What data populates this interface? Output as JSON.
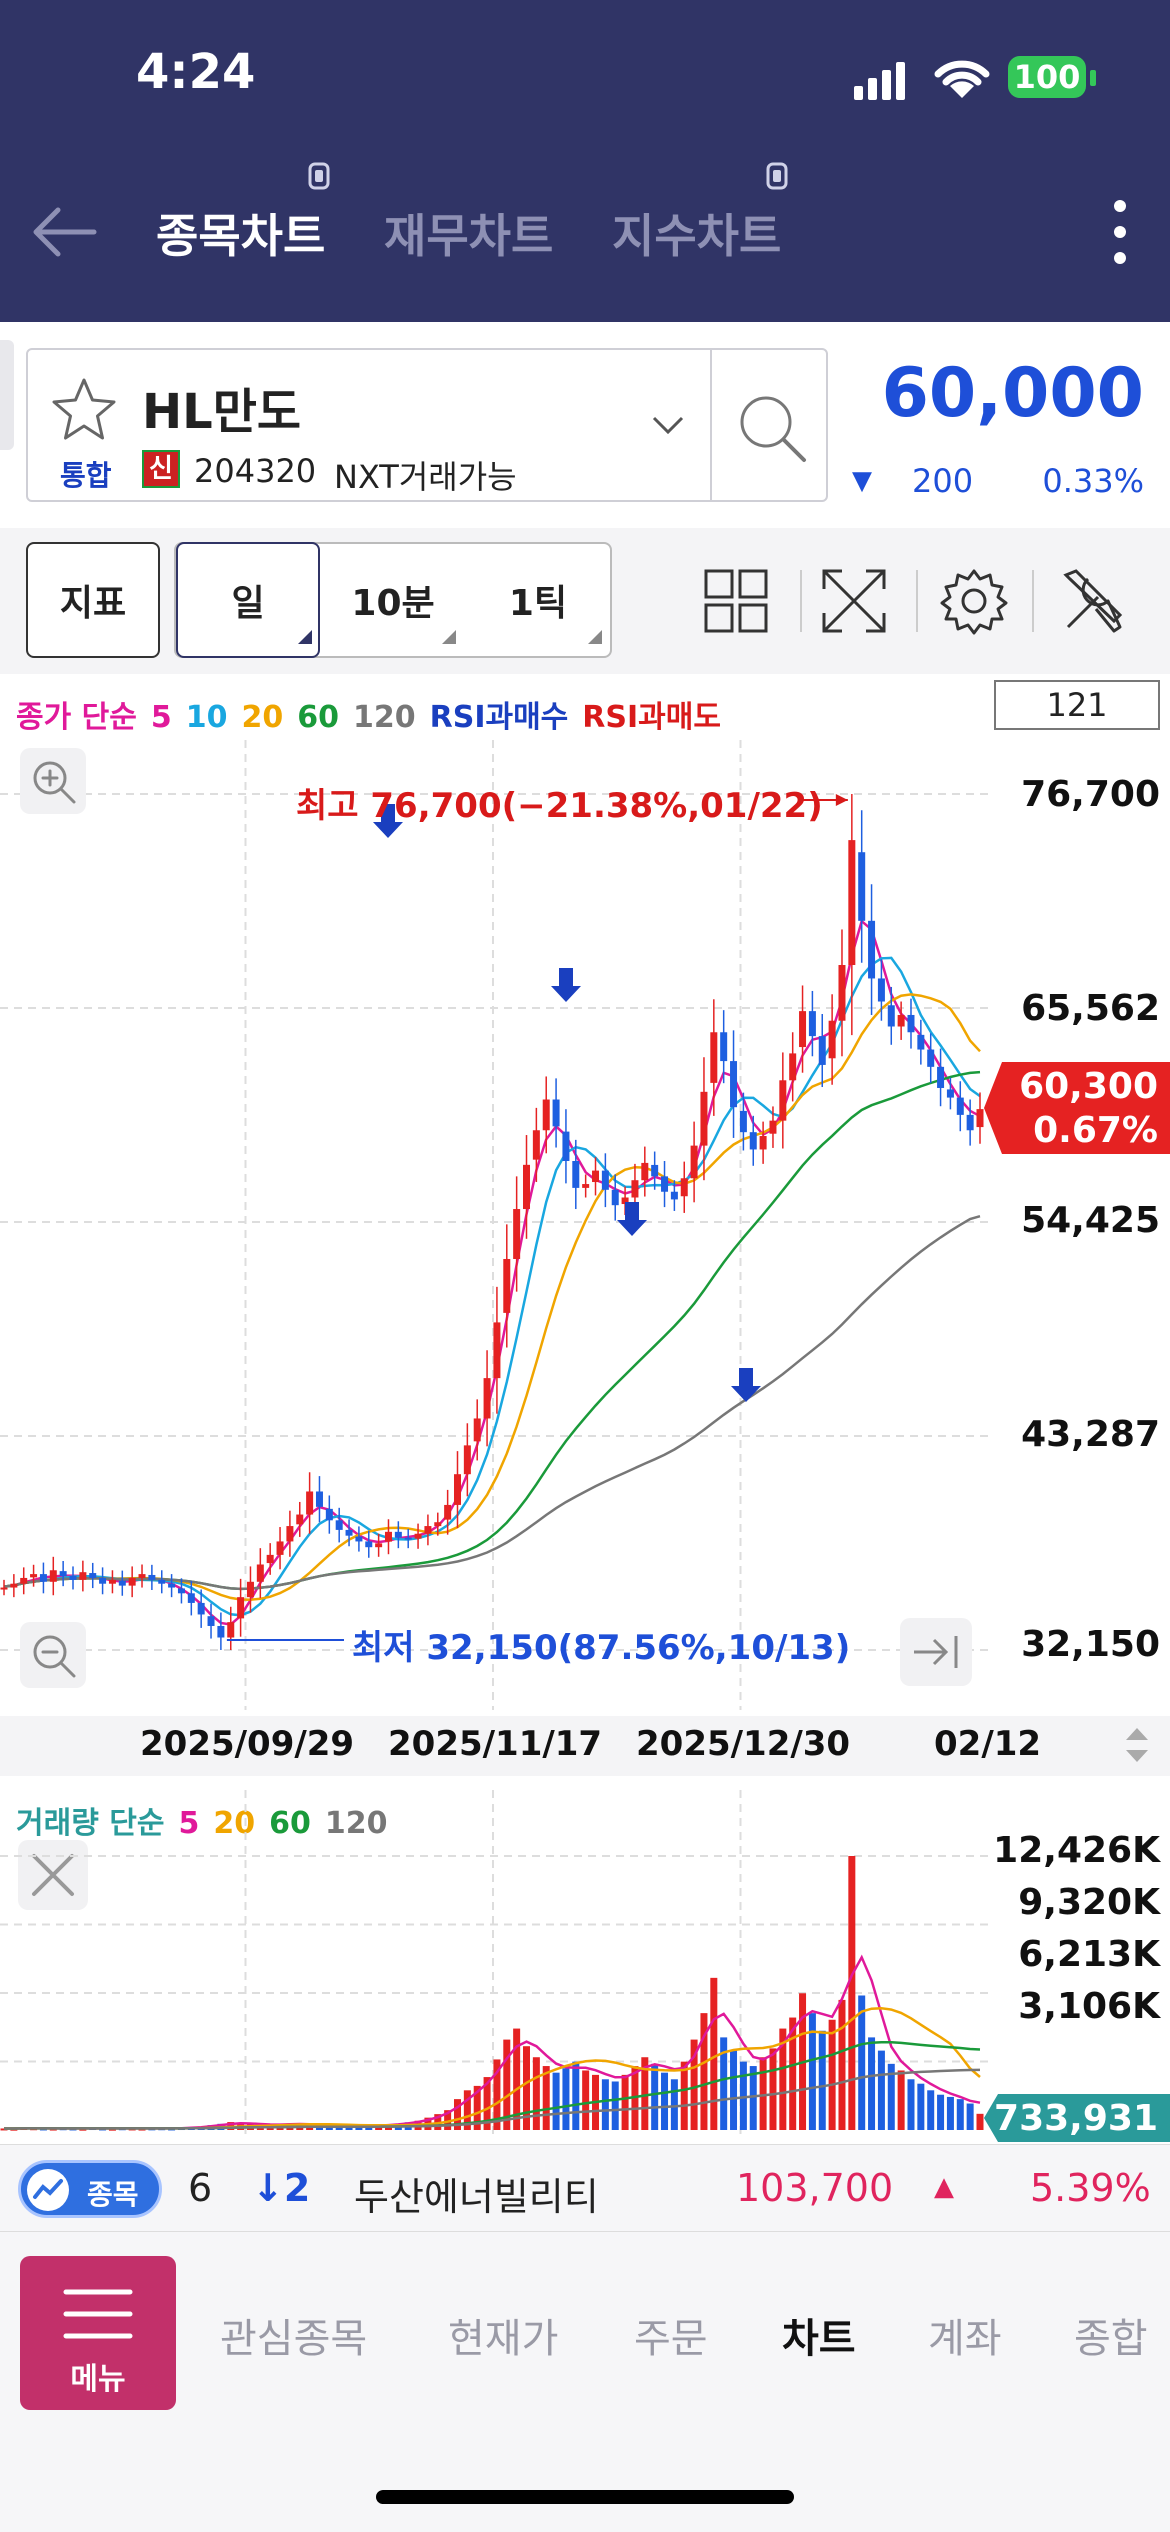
{
  "status_bar": {
    "time": "4:24",
    "battery": "100"
  },
  "header": {
    "tabs": [
      {
        "label": "종목차트",
        "active": true
      },
      {
        "label": "재무차트",
        "active": false
      },
      {
        "label": "지수차트",
        "active": false
      }
    ]
  },
  "stock": {
    "name": "HL만도",
    "market": "통합",
    "credit_badge": "신",
    "code": "204320",
    "nxt": "NXT거래가능",
    "price": "60,000",
    "change_arrow": "▼",
    "change": "200",
    "change_pct": "0.33%"
  },
  "toolbar": {
    "indicator": "지표",
    "periods": [
      "일",
      "10분",
      "1틱"
    ],
    "active_period": "일"
  },
  "chart_legend": {
    "items": [
      {
        "text": "종가 단순",
        "color": "#e0199a"
      },
      {
        "text": "5",
        "color": "#e0199a"
      },
      {
        "text": "10",
        "color": "#19a7e0"
      },
      {
        "text": "20",
        "color": "#f0a500"
      },
      {
        "text": "60",
        "color": "#1a9a3a"
      },
      {
        "text": "120",
        "color": "#777777"
      },
      {
        "text": "RSI과매수",
        "color": "#1a3fbf"
      },
      {
        "text": "RSI과매도",
        "color": "#d81a1a"
      }
    ],
    "count": "121"
  },
  "price_axis": {
    "ticks": [
      "76,700",
      "65,562",
      "54,425",
      "43,287",
      "32,150"
    ],
    "current_price": "60,300",
    "current_pct": "0.67%"
  },
  "annotations": {
    "high": "최고 76,700(−21.38%,01/22)",
    "low": "최저 32,150(87.56%,10/13)"
  },
  "dates": [
    "2025/09/29",
    "2025/11/17",
    "2025/12/30",
    "02/12"
  ],
  "volume_legend": {
    "items": [
      {
        "text": "거래량 단순",
        "color": "#2a9a9a"
      },
      {
        "text": "5",
        "color": "#e0199a"
      },
      {
        "text": "20",
        "color": "#f0a500"
      },
      {
        "text": "60",
        "color": "#1a9a3a"
      },
      {
        "text": "120",
        "color": "#777777"
      }
    ]
  },
  "volume_axis": {
    "ticks": [
      "12,426K",
      "9,320K",
      "6,213K",
      "3,106K"
    ],
    "current": "733,931"
  },
  "ticker": {
    "badge": "종목",
    "rank": "6",
    "rank_change": "↓2",
    "name": "두산에너빌리티",
    "price": "103,700",
    "arrow": "▲",
    "pct": "5.39%"
  },
  "bottom_nav": {
    "menu_label": "메뉴",
    "items": [
      "관심종목",
      "현재가",
      "주문",
      "차트",
      "계좌",
      "종합"
    ],
    "active": "차트"
  },
  "chart_data": {
    "type": "candlestick",
    "series_names": [
      "종가 단순 5",
      "10",
      "20",
      "60",
      "120"
    ],
    "price_range": [
      32150,
      76700
    ],
    "x_labels": [
      "2025/09/29",
      "2025/11/17",
      "2025/12/30",
      "02/12"
    ],
    "high": {
      "value": 76700,
      "label": "최고 76,700(−21.38%,01/22)"
    },
    "low": {
      "value": 32150,
      "label": "최저 32,150(87.56%,10/13)"
    },
    "close": [
      35400,
      35600,
      35900,
      36100,
      35700,
      36300,
      36000,
      35800,
      36200,
      35900,
      35600,
      35800,
      35500,
      35900,
      36100,
      35800,
      35600,
      35400,
      35100,
      34600,
      34000,
      33400,
      32800,
      33600,
      34900,
      35700,
      36600,
      37100,
      37800,
      38600,
      39200,
      40400,
      39600,
      38900,
      38400,
      38100,
      37800,
      37500,
      37700,
      38300,
      38000,
      37900,
      38200,
      38600,
      38800,
      39700,
      41300,
      42800,
      44200,
      46300,
      49200,
      52500,
      55100,
      57400,
      59200,
      60800,
      59400,
      57600,
      56200,
      56400,
      57100,
      56100,
      55300,
      55700,
      56600,
      57500,
      56800,
      56000,
      55600,
      56700,
      58400,
      61200,
      64300,
      62800,
      60400,
      59100,
      58200,
      58900,
      59700,
      61800,
      63200,
      65400,
      64100,
      62600,
      64900,
      67800,
      74300,
      70100,
      67100,
      65900,
      64600,
      65200,
      64300,
      63400,
      62500,
      61400,
      60900,
      60000,
      59200,
      60300
    ],
    "volume_k": [
      70,
      60,
      90,
      80,
      70,
      65,
      80,
      70,
      60,
      90,
      70,
      60,
      80,
      70,
      65,
      75,
      80,
      70,
      90,
      120,
      160,
      220,
      280,
      360,
      300,
      260,
      240,
      220,
      260,
      300,
      280,
      240,
      200,
      180,
      160,
      150,
      170,
      190,
      210,
      260,
      280,
      350,
      420,
      560,
      720,
      900,
      1400,
      1800,
      2000,
      2400,
      3200,
      4100,
      4600,
      3800,
      3300,
      2900,
      2600,
      2800,
      3100,
      2700,
      2500,
      2300,
      2200,
      2500,
      2900,
      3300,
      3000,
      2600,
      2300,
      3100,
      4100,
      5300,
      6900,
      4200,
      3600,
      3100,
      2900,
      3300,
      3700,
      4600,
      5100,
      6200,
      5300,
      4500,
      5000,
      5900,
      12426,
      6100,
      4200,
      3600,
      3000,
      2700,
      2300,
      2100,
      1800,
      1600,
      1500,
      1400,
      1200,
      733.931
    ],
    "volume_range": [
      0,
      12426
    ]
  }
}
